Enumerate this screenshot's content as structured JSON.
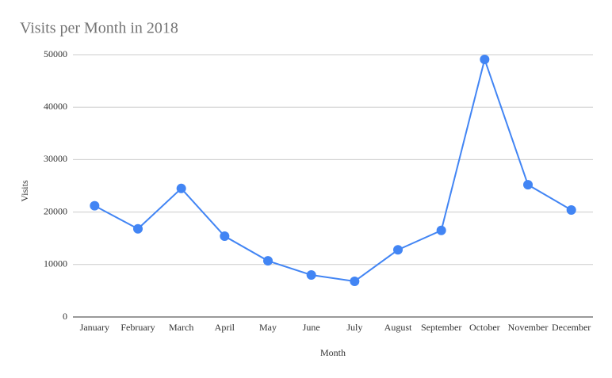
{
  "chart_data": {
    "type": "line",
    "title": "Visits per Month in 2018",
    "x_label": "Month",
    "y_label": "Visits",
    "categories": [
      "January",
      "February",
      "March",
      "April",
      "May",
      "June",
      "July",
      "August",
      "September",
      "October",
      "November",
      "December"
    ],
    "series": [
      {
        "name": "Visits",
        "color": "#4285f4",
        "values": [
          21200,
          16800,
          24500,
          15400,
          10700,
          8000,
          6800,
          12800,
          16500,
          49100,
          25200,
          20400
        ]
      }
    ],
    "ylim": [
      0,
      50000
    ],
    "yticks": [
      0,
      10000,
      20000,
      30000,
      40000,
      50000
    ],
    "grid": true
  }
}
